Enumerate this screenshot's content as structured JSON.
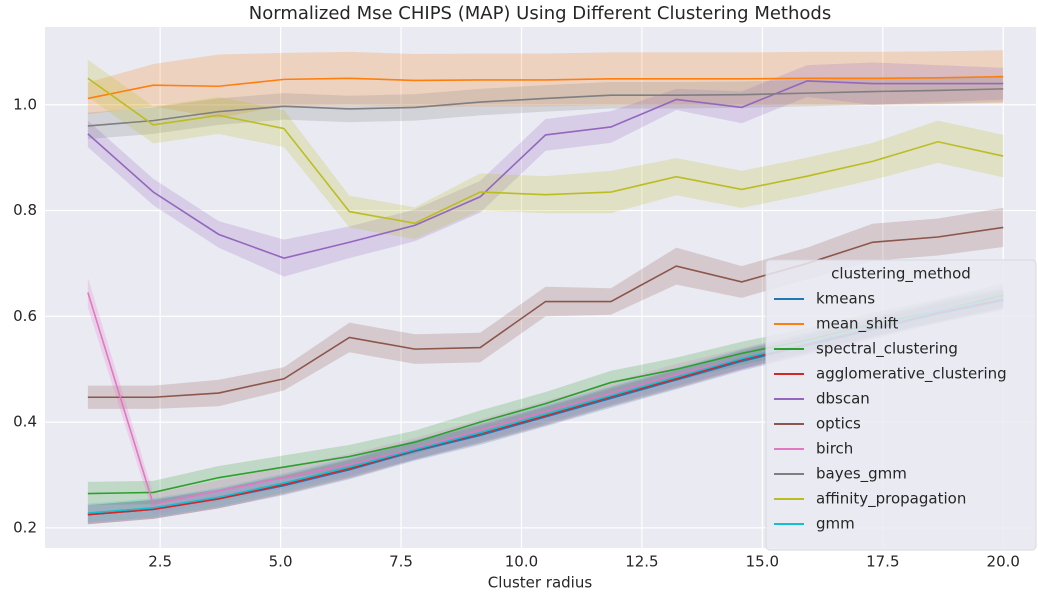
{
  "chart_data": {
    "type": "line",
    "title": "Normalized Mse CHIPS (MAP) Using Different Clustering Methods",
    "x_label": "Cluster radius",
    "legend_title": "clustering_method",
    "legend": "right",
    "grid": true,
    "x": [
      1,
      2.357,
      3.714,
      5.071,
      6.429,
      7.786,
      9.143,
      10.5,
      11.857,
      13.214,
      14.571,
      15.929,
      17.286,
      18.643,
      20
    ],
    "xlim": [
      0.11,
      20.68
    ],
    "ylim": [
      0.162,
      1.147
    ],
    "xticks": [
      2.5,
      {
        "value": 5,
        "label": "5.0"
      },
      7.5,
      {
        "value": 10,
        "label": "10.0"
      },
      12.5,
      {
        "value": 15,
        "label": "15.0"
      },
      17.5,
      {
        "value": 20,
        "label": "20.0"
      }
    ],
    "yticks": [
      0.2,
      0.4,
      0.6,
      0.8,
      {
        "value": 1,
        "label": "1.0"
      }
    ],
    "series": [
      {
        "name": "kmeans",
        "color": "#1f77b4",
        "values": [
          0.225,
          0.235,
          0.255,
          0.28,
          0.31,
          0.345,
          0.375,
          0.41,
          0.445,
          0.48,
          0.515,
          0.545,
          0.575,
          0.605,
          0.63
        ],
        "error": [
          0.018,
          0.018,
          0.018,
          0.018,
          0.018,
          0.018,
          0.018,
          0.018,
          0.018,
          0.018,
          0.018,
          0.018,
          0.018,
          0.018,
          0.018
        ]
      },
      {
        "name": "mean_shift",
        "color": "#ff7f0e",
        "values": [
          1.012,
          1.037,
          1.035,
          1.048,
          1.05,
          1.046,
          1.047,
          1.047,
          1.049,
          1.049,
          1.049,
          1.05,
          1.05,
          1.051,
          1.053
        ],
        "error": [
          0.03,
          0.04,
          0.06,
          0.05,
          0.05,
          0.05,
          0.05,
          0.05,
          0.05,
          0.05,
          0.05,
          0.05,
          0.05,
          0.05,
          0.05
        ]
      },
      {
        "name": "spectral_clustering",
        "color": "#2ca02c",
        "values": [
          0.265,
          0.267,
          0.295,
          0.315,
          0.335,
          0.362,
          0.4,
          0.435,
          0.475,
          0.5,
          0.53,
          0.555,
          0.585,
          0.61,
          0.64
        ],
        "error": [
          0.022,
          0.022,
          0.022,
          0.022,
          0.022,
          0.022,
          0.022,
          0.022,
          0.022,
          0.022,
          0.022,
          0.022,
          0.022,
          0.022,
          0.022
        ]
      },
      {
        "name": "agglomerative_clustering",
        "color": "#d62728",
        "values": [
          0.225,
          0.235,
          0.255,
          0.282,
          0.312,
          0.347,
          0.378,
          0.412,
          0.448,
          0.482,
          0.518,
          0.548,
          0.578,
          0.608,
          0.632
        ],
        "error": [
          0.018,
          0.018,
          0.018,
          0.018,
          0.018,
          0.018,
          0.018,
          0.018,
          0.018,
          0.018,
          0.018,
          0.018,
          0.018,
          0.018,
          0.018
        ]
      },
      {
        "name": "dbscan",
        "color": "#9467bd",
        "values": [
          0.945,
          0.835,
          0.755,
          0.71,
          0.74,
          0.772,
          0.826,
          0.943,
          0.958,
          1.01,
          0.995,
          1.045,
          1.04,
          1.04,
          1.04
        ],
        "error": [
          0.025,
          0.025,
          0.025,
          0.035,
          0.03,
          0.03,
          0.03,
          0.03,
          0.03,
          0.02,
          0.03,
          0.03,
          0.04,
          0.035,
          0.03
        ]
      },
      {
        "name": "optics",
        "color": "#8c564b",
        "values": [
          0.447,
          0.447,
          0.455,
          0.482,
          0.56,
          0.538,
          0.541,
          0.628,
          0.628,
          0.695,
          0.665,
          0.7,
          0.74,
          0.75,
          0.768
        ],
        "error": [
          0.022,
          0.022,
          0.025,
          0.022,
          0.028,
          0.028,
          0.028,
          0.028,
          0.025,
          0.035,
          0.03,
          0.03,
          0.035,
          0.035,
          0.037
        ]
      },
      {
        "name": "birch",
        "color": "#e377c2",
        "values": [
          0.645,
          0.245,
          0.27,
          0.295,
          0.32,
          0.35,
          0.385,
          0.42,
          0.455,
          0.49,
          0.52,
          0.55,
          0.58,
          0.61,
          0.635
        ],
        "error": [
          0.028,
          0.02,
          0.02,
          0.02,
          0.02,
          0.02,
          0.02,
          0.02,
          0.02,
          0.02,
          0.02,
          0.02,
          0.02,
          0.02,
          0.02
        ]
      },
      {
        "name": "bayes_gmm",
        "color": "#7f7f7f",
        "values": [
          0.96,
          0.97,
          0.987,
          0.997,
          0.992,
          0.995,
          1.005,
          1.012,
          1.018,
          1.018,
          1.019,
          1.022,
          1.025,
          1.027,
          1.03
        ],
        "error": [
          0.025,
          0.025,
          0.025,
          0.025,
          0.025,
          0.025,
          0.025,
          0.025,
          0.025,
          0.025,
          0.025,
          0.025,
          0.025,
          0.025,
          0.025
        ]
      },
      {
        "name": "affinity_propagation",
        "color": "#bcbd22",
        "values": [
          1.05,
          0.962,
          0.98,
          0.955,
          0.798,
          0.776,
          0.835,
          0.83,
          0.835,
          0.864,
          0.84,
          0.865,
          0.893,
          0.93,
          0.903
        ],
        "error": [
          0.035,
          0.035,
          0.035,
          0.035,
          0.03,
          0.03,
          0.035,
          0.035,
          0.04,
          0.035,
          0.035,
          0.035,
          0.035,
          0.04,
          0.04
        ]
      },
      {
        "name": "gmm",
        "color": "#17becf",
        "values": [
          0.228,
          0.238,
          0.258,
          0.285,
          0.315,
          0.348,
          0.38,
          0.415,
          0.45,
          0.485,
          0.52,
          0.55,
          0.58,
          0.61,
          0.635
        ],
        "error": [
          0.018,
          0.018,
          0.018,
          0.018,
          0.018,
          0.018,
          0.018,
          0.018,
          0.018,
          0.018,
          0.018,
          0.018,
          0.018,
          0.018,
          0.018
        ]
      }
    ]
  }
}
